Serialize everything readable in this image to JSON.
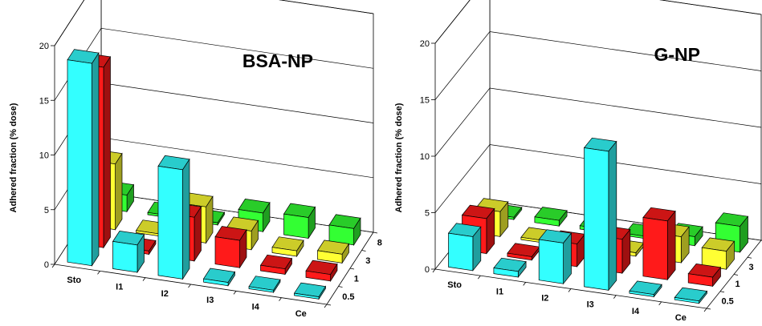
{
  "chart_data": [
    {
      "type": "bar",
      "title": "BSA-NP",
      "ylabel": "Adhered fraction (% dose)",
      "ylim": [
        0,
        20
      ],
      "yticks": [
        "0",
        "5",
        "10",
        "15",
        "20"
      ],
      "categories": [
        "Sto",
        "I1",
        "I2",
        "I3",
        "I4",
        "Ce"
      ],
      "series": [
        {
          "name": "0.5",
          "color": "#33ffff",
          "values": [
            18.5,
            2.5,
            10,
            0.3,
            0.2,
            0.2
          ]
        },
        {
          "name": "1",
          "color": "#ff1a1a",
          "values": [
            16.5,
            0.3,
            4,
            2.5,
            0.5,
            0.6
          ]
        },
        {
          "name": "3",
          "color": "#ffff33",
          "values": [
            6,
            0.2,
            3.3,
            1.7,
            0.5,
            0.8
          ]
        },
        {
          "name": "8",
          "color": "#33ff33",
          "values": [
            1.5,
            0.2,
            0.2,
            1.7,
            1.9,
            1.5
          ]
        }
      ]
    },
    {
      "type": "bar",
      "title": "G-NP",
      "ylabel": "Adhered fraction (% dose)",
      "ylim": [
        0,
        20
      ],
      "yticks": [
        "0",
        "5",
        "10",
        "15",
        "20"
      ],
      "categories": [
        "Sto",
        "I1",
        "I2",
        "I3",
        "I4",
        "Ce"
      ],
      "series": [
        {
          "name": "0.5",
          "color": "#33ffff",
          "values": [
            3,
            0.5,
            3.6,
            12.3,
            0.2,
            0.2
          ]
        },
        {
          "name": "1",
          "color": "#ff1a1a",
          "values": [
            3.1,
            0.3,
            2,
            3,
            5.2,
            0.8
          ]
        },
        {
          "name": "3",
          "color": "#ffff33",
          "values": [
            2.2,
            0.2,
            0.3,
            0.3,
            2.3,
            1.6
          ]
        },
        {
          "name": "8",
          "color": "#33ff33",
          "values": [
            0.2,
            0.5,
            0.3,
            0.2,
            0.8,
            2.3
          ]
        }
      ]
    }
  ]
}
